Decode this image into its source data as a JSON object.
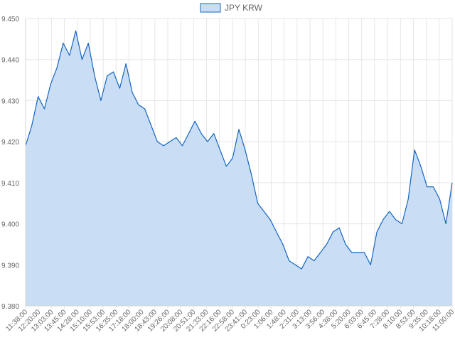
{
  "chart_data": {
    "type": "area",
    "legend": {
      "label": "JPY KRW",
      "placement": "top-center"
    },
    "colors": {
      "line": "#1565c0",
      "fill": "#c9def4",
      "grid": "#e6e6e6",
      "axis_text": "#666666"
    },
    "grid": true,
    "ylim": [
      9.38,
      9.45
    ],
    "y_ticks": [
      "9.380",
      "9.390",
      "9.400",
      "9.410",
      "9.420",
      "9.430",
      "9.440",
      "9.450"
    ],
    "x_ticks": [
      "11:38:00",
      "12:20:00",
      "13:03:00",
      "13:45:00",
      "14:28:00",
      "15:10:00",
      "15:53:00",
      "16:35:00",
      "17:18:00",
      "18:00:00",
      "18:43:00",
      "19:26:00",
      "20:08:00",
      "20:51:00",
      "21:33:00",
      "22:16:00",
      "22:58:00",
      "23:41:00",
      "0:23:00",
      "1:06:00",
      "1:48:00",
      "2:31:00",
      "3:13:00",
      "3:56:00",
      "4:38:00",
      "5:20:00",
      "6:03:00",
      "6:45:00",
      "7:28:00",
      "8:10:00",
      "8:53:00",
      "9:35:00",
      "10:18:00",
      "11:00:00"
    ],
    "series": [
      {
        "name": "JPY KRW",
        "points": [
          [
            "11:38:00",
            9.419
          ],
          [
            "11:59:00",
            9.424
          ],
          [
            "12:20:00",
            9.431
          ],
          [
            "12:41:00",
            9.428
          ],
          [
            "13:03:00",
            9.434
          ],
          [
            "13:24:00",
            9.438
          ],
          [
            "13:45:00",
            9.444
          ],
          [
            "14:06:00",
            9.441
          ],
          [
            "14:28:00",
            9.447
          ],
          [
            "14:49:00",
            9.44
          ],
          [
            "15:10:00",
            9.444
          ],
          [
            "15:31:00",
            9.436
          ],
          [
            "15:53:00",
            9.43
          ],
          [
            "16:14:00",
            9.436
          ],
          [
            "16:35:00",
            9.437
          ],
          [
            "16:56:00",
            9.433
          ],
          [
            "17:18:00",
            9.439
          ],
          [
            "17:39:00",
            9.432
          ],
          [
            "18:00:00",
            9.429
          ],
          [
            "18:21:00",
            9.428
          ],
          [
            "18:43:00",
            9.424
          ],
          [
            "19:04:00",
            9.42
          ],
          [
            "19:26:00",
            9.419
          ],
          [
            "19:47:00",
            9.42
          ],
          [
            "20:08:00",
            9.421
          ],
          [
            "20:29:00",
            9.419
          ],
          [
            "20:51:00",
            9.422
          ],
          [
            "21:12:00",
            9.425
          ],
          [
            "21:33:00",
            9.422
          ],
          [
            "21:54:00",
            9.42
          ],
          [
            "22:16:00",
            9.422
          ],
          [
            "22:37:00",
            9.418
          ],
          [
            "22:58:00",
            9.414
          ],
          [
            "23:19:00",
            9.416
          ],
          [
            "23:41:00",
            9.423
          ],
          [
            "0:02:00",
            9.418
          ],
          [
            "0:23:00",
            9.412
          ],
          [
            "0:44:00",
            9.405
          ],
          [
            "1:06:00",
            9.403
          ],
          [
            "1:27:00",
            9.401
          ],
          [
            "1:48:00",
            9.398
          ],
          [
            "2:09:00",
            9.395
          ],
          [
            "2:31:00",
            9.391
          ],
          [
            "2:52:00",
            9.39
          ],
          [
            "3:13:00",
            9.389
          ],
          [
            "3:34:00",
            9.392
          ],
          [
            "3:56:00",
            9.391
          ],
          [
            "4:17:00",
            9.393
          ],
          [
            "4:38:00",
            9.395
          ],
          [
            "4:59:00",
            9.398
          ],
          [
            "5:20:00",
            9.399
          ],
          [
            "5:41:00",
            9.395
          ],
          [
            "6:03:00",
            9.393
          ],
          [
            "6:24:00",
            9.393
          ],
          [
            "6:45:00",
            9.393
          ],
          [
            "7:06:00",
            9.39
          ],
          [
            "7:28:00",
            9.398
          ],
          [
            "7:49:00",
            9.401
          ],
          [
            "8:10:00",
            9.403
          ],
          [
            "8:31:00",
            9.401
          ],
          [
            "8:53:00",
            9.4
          ],
          [
            "9:14:00",
            9.406
          ],
          [
            "9:35:00",
            9.418
          ],
          [
            "9:56:00",
            9.414
          ],
          [
            "10:18:00",
            9.409
          ],
          [
            "10:39:00",
            9.409
          ],
          [
            "11:00:00",
            9.406
          ],
          [
            "11:21:00",
            9.4
          ],
          [
            "11:38:00",
            9.41
          ]
        ]
      }
    ]
  }
}
